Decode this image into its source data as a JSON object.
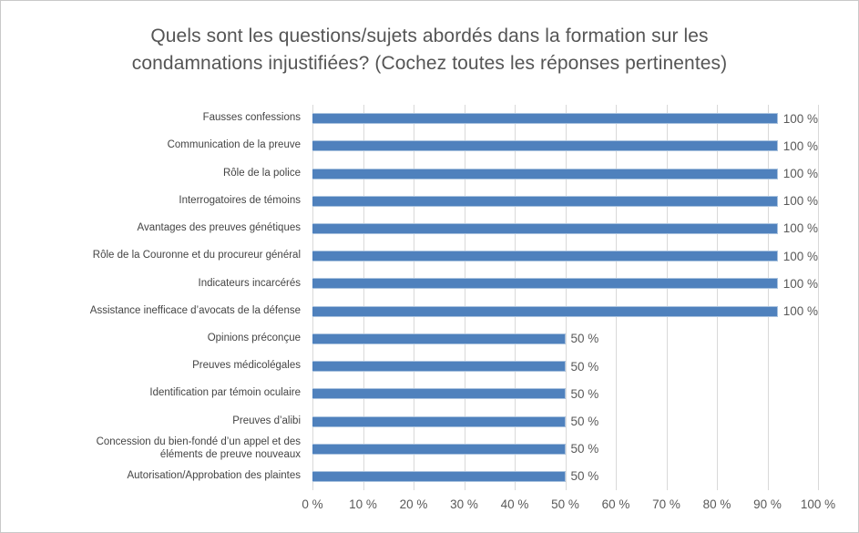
{
  "title": "Quels sont les questions/sujets abordés dans la formation sur les condamnations injustifiées? (Cochez toutes les réponses pertinentes)",
  "chart_data": {
    "type": "bar",
    "orientation": "horizontal",
    "title": "Quels sont les questions/sujets abordés dans la formation sur les condamnations injustifiées? (Cochez toutes les réponses pertinentes)",
    "categories": [
      "Fausses confessions",
      "Communication de la preuve",
      "Rôle de la police",
      "Interrogatoires de témoins",
      "Avantages des preuves génétiques",
      "Rôle de la Couronne et du procureur général",
      "Indicateurs incarcérés",
      "Assistance inefficace d’avocats de la défense",
      "Opinions préconçue",
      "Preuves médicolégales",
      "Identification par témoin oculaire",
      "Preuves d’alibi",
      "Concession du bien-fondé d’un appel et des éléments de preuve nouveaux",
      "Autorisation/Approbation des plaintes"
    ],
    "values": [
      100,
      100,
      100,
      100,
      100,
      100,
      100,
      100,
      50,
      50,
      50,
      50,
      50,
      50
    ],
    "value_labels": [
      "100 %",
      "100 %",
      "100 %",
      "100 %",
      "100 %",
      "100 %",
      "100 %",
      "100 %",
      "50 %",
      "50 %",
      "50 %",
      "50 %",
      "50 %",
      "50 %"
    ],
    "x_ticks": [
      "0 %",
      "10 %",
      "20 %",
      "30 %",
      "40 %",
      "50 %",
      "60 %",
      "70 %",
      "80 %",
      "90 %",
      "100 %"
    ],
    "x_tick_values": [
      0,
      10,
      20,
      30,
      40,
      50,
      60,
      70,
      80,
      90,
      100
    ],
    "xlim": [
      0,
      100
    ],
    "grid": true,
    "legend": "none",
    "bar_color": "#4f81bd",
    "gridline_color": "#d9d9d9",
    "text_color": "#595959"
  }
}
